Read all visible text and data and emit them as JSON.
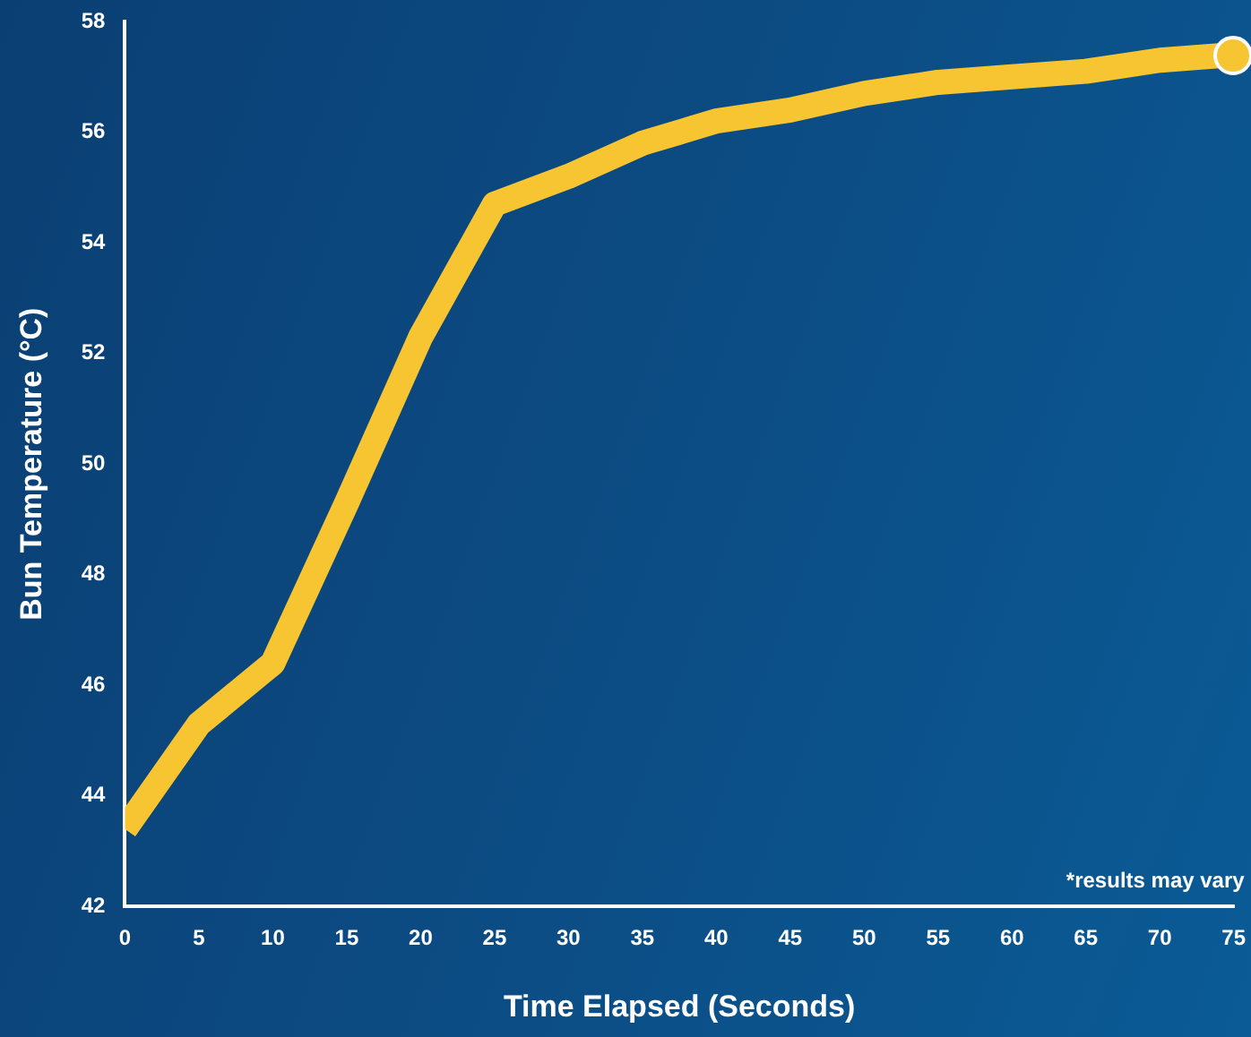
{
  "chart_data": {
    "type": "line",
    "xlabel": "Time Elapsed (Seconds)",
    "ylabel": "Bun Temperature (°C)",
    "x": [
      0,
      5,
      10,
      15,
      20,
      25,
      30,
      35,
      40,
      45,
      50,
      55,
      60,
      65,
      70,
      75
    ],
    "series": [
      {
        "color": "#f6c531",
        "values": [
          43.4,
          45.3,
          46.4,
          49.3,
          52.3,
          54.7,
          55.2,
          55.8,
          56.2,
          56.4,
          56.7,
          56.9,
          57.0,
          57.1,
          57.3,
          57.4
        ]
      }
    ],
    "xlim": [
      0,
      75
    ],
    "xticks": [
      0,
      5,
      10,
      15,
      20,
      25,
      30,
      35,
      40,
      45,
      50,
      55,
      60,
      65,
      70,
      75
    ],
    "ylim": [
      42,
      58
    ],
    "yticks": [
      42,
      44,
      46,
      48,
      50,
      52,
      54,
      56,
      58
    ],
    "grid": false,
    "legend": false,
    "line_style": "solid",
    "annotations": [
      "*results may vary"
    ]
  }
}
